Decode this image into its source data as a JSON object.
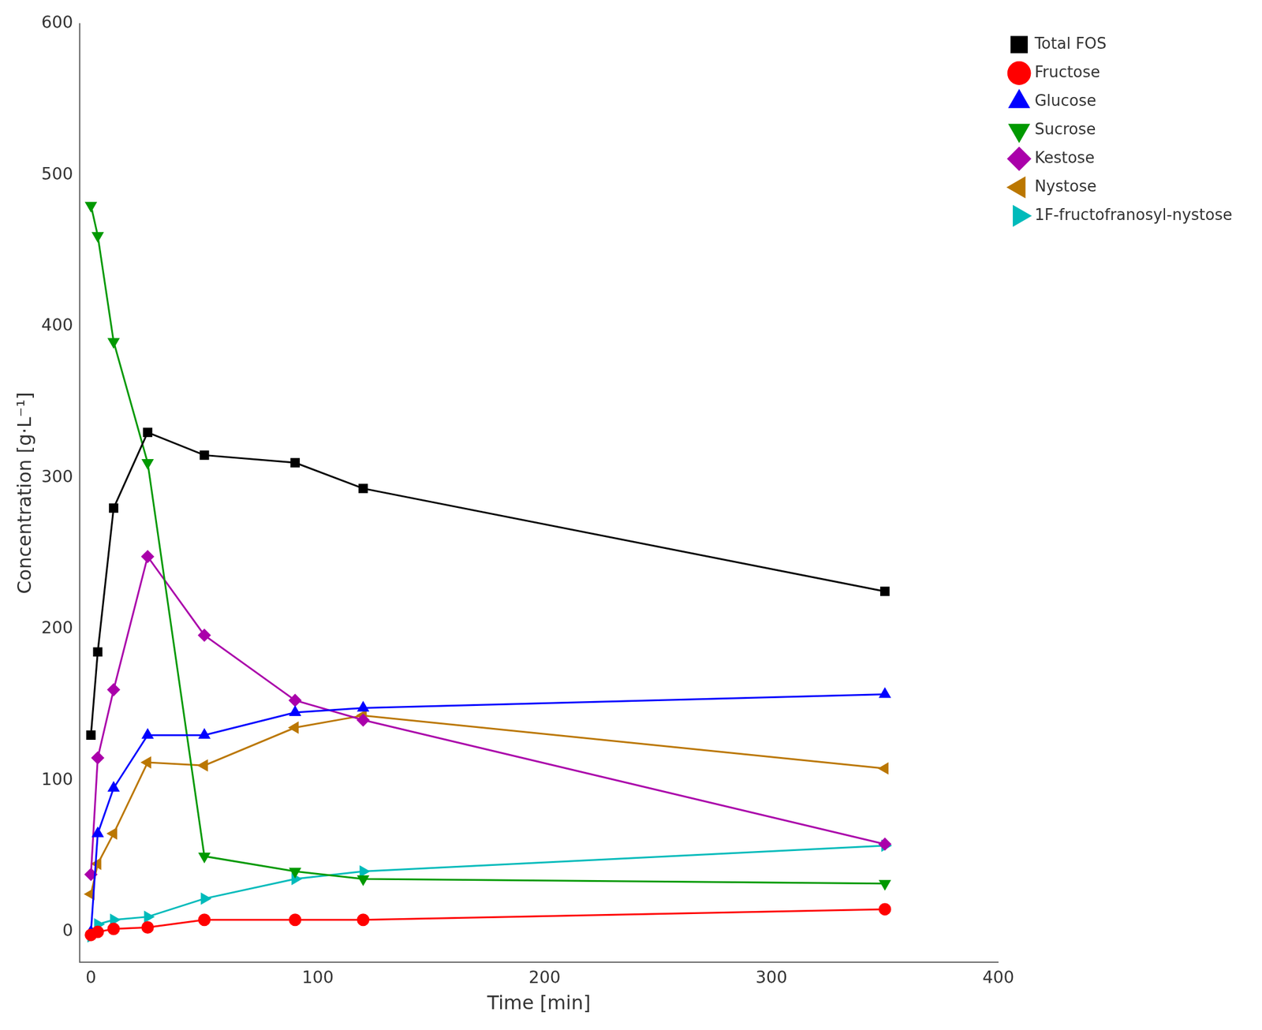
{
  "chart_data": {
    "type": "line",
    "xlabel": "Time [min]",
    "ylabel": "Concentration [g·L⁻¹]",
    "xlim": [
      -5,
      400
    ],
    "ylim": [
      -20,
      600
    ],
    "xticks": [
      0,
      100,
      200,
      300,
      400
    ],
    "yticks": [
      0,
      100,
      200,
      300,
      400,
      500,
      600
    ],
    "grid": false,
    "legend": "upper right",
    "x": [
      0,
      3,
      10,
      25,
      50,
      90,
      120,
      350
    ],
    "series": [
      {
        "name": "Total FOS",
        "color": "#000000",
        "marker": "square",
        "values": [
          130,
          185,
          280,
          330,
          315,
          310,
          293,
          225
        ]
      },
      {
        "name": "Fructose",
        "color": "#ff0000",
        "marker": "circle",
        "values": [
          -2,
          0,
          2,
          3,
          8,
          8,
          8,
          15
        ]
      },
      {
        "name": "Glucose",
        "color": "#0000ff",
        "marker": "triangle-up",
        "values": [
          0,
          65,
          95,
          130,
          130,
          145,
          148,
          157
        ]
      },
      {
        "name": "Sucrose",
        "color": "#009900",
        "marker": "triangle-down",
        "values": [
          480,
          460,
          390,
          310,
          50,
          40,
          35,
          32
        ]
      },
      {
        "name": "Kestose",
        "color": "#aa00aa",
        "marker": "diamond",
        "values": [
          38,
          115,
          160,
          248,
          196,
          153,
          140,
          58
        ]
      },
      {
        "name": "Nystose",
        "color": "#bb7700",
        "marker": "triangle-left",
        "values": [
          25,
          45,
          65,
          112,
          110,
          135,
          143,
          108
        ]
      },
      {
        "name": "1F-fructofranosyl-nystose",
        "color": "#00bbbb",
        "marker": "triangle-right",
        "values": [
          -3,
          5,
          8,
          10,
          22,
          35,
          40,
          57
        ]
      }
    ]
  }
}
